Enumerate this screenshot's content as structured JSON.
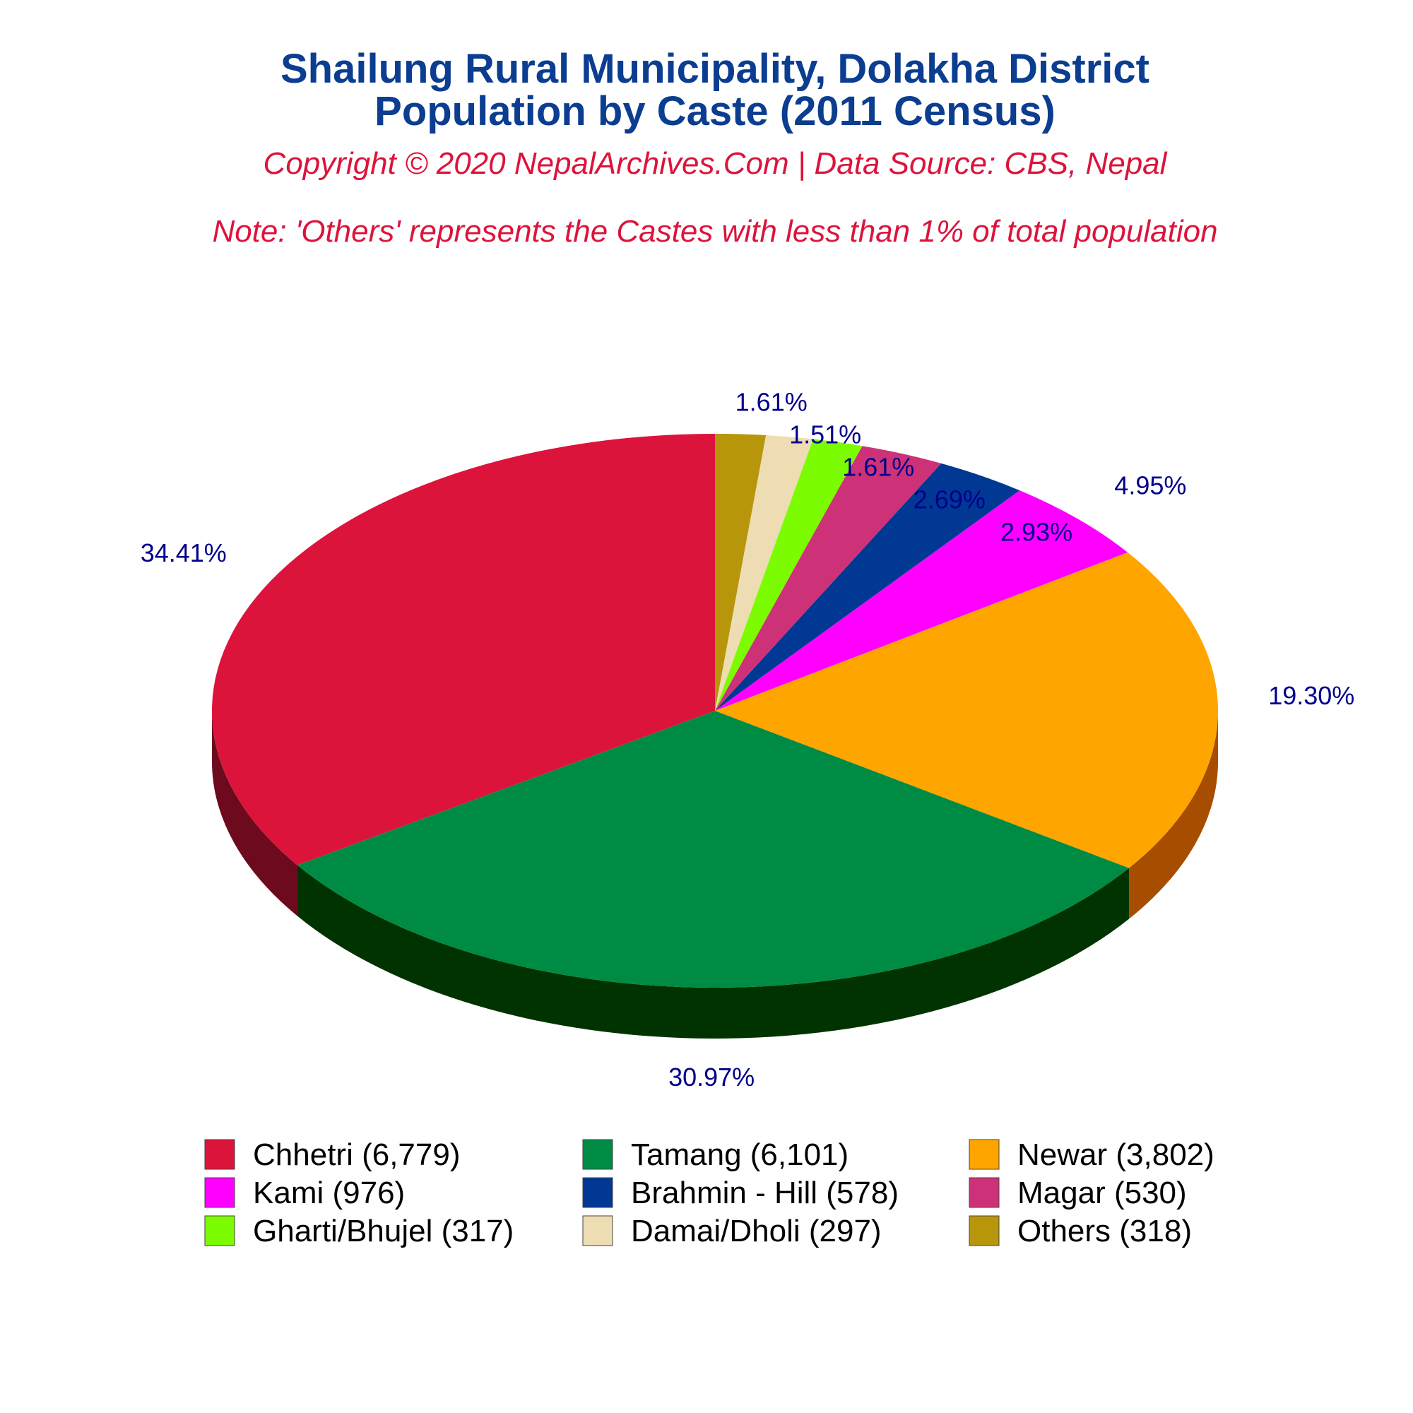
{
  "chart_data": {
    "type": "pie",
    "title": [
      "Shailung Rural Municipality, Dolakha District",
      "Population by Caste (2011 Census)"
    ],
    "subtitle": "Copyright © 2020 NepalArchives.Com | Data Source: CBS, Nepal",
    "note": "Note: 'Others' represents the Castes with less than 1% of total population",
    "slices": [
      {
        "name": "Chhetri",
        "value": 6779,
        "percent_label": "34.41%",
        "legend_label": "Chhetri (6,779)",
        "color": "#dc143c",
        "side_color": "#6e0a1e"
      },
      {
        "name": "Tamang",
        "value": 6101,
        "percent_label": "30.97%",
        "legend_label": "Tamang (6,101)",
        "color": "#008b45",
        "side_color": "#003300"
      },
      {
        "name": "Newar",
        "value": 3802,
        "percent_label": "19.30%",
        "legend_label": "Newar (3,802)",
        "color": "#ffa500",
        "side_color": "#a64d00"
      },
      {
        "name": "Kami",
        "value": 976,
        "percent_label": "4.95%",
        "legend_label": "Kami (976)",
        "color": "#ff00ff",
        "side_color": "#a000a8"
      },
      {
        "name": "Brahmin - Hill",
        "value": 578,
        "percent_label": "2.93%",
        "legend_label": "Brahmin - Hill (578)",
        "color": "#003893",
        "side_color": "#001c4a"
      },
      {
        "name": "Magar",
        "value": 530,
        "percent_label": "2.69%",
        "legend_label": "Magar (530)",
        "color": "#cd3278",
        "side_color": "#66193c"
      },
      {
        "name": "Gharti/Bhujel",
        "value": 317,
        "percent_label": "1.61%",
        "legend_label": "Gharti/Bhujel (317)",
        "color": "#7cfc00",
        "side_color": "#3e7e00"
      },
      {
        "name": "Damai/Dholi",
        "value": 297,
        "percent_label": "1.51%",
        "legend_label": "Damai/Dholi (297)",
        "color": "#eedcb3",
        "side_color": "#776e5a"
      },
      {
        "name": "Others",
        "value": 318,
        "percent_label": "1.61%",
        "legend_label": "Others (318)",
        "color": "#b8960b",
        "side_color": "#5c4b06"
      }
    ],
    "legend_position": "bottom",
    "label_color": "#00008b"
  }
}
